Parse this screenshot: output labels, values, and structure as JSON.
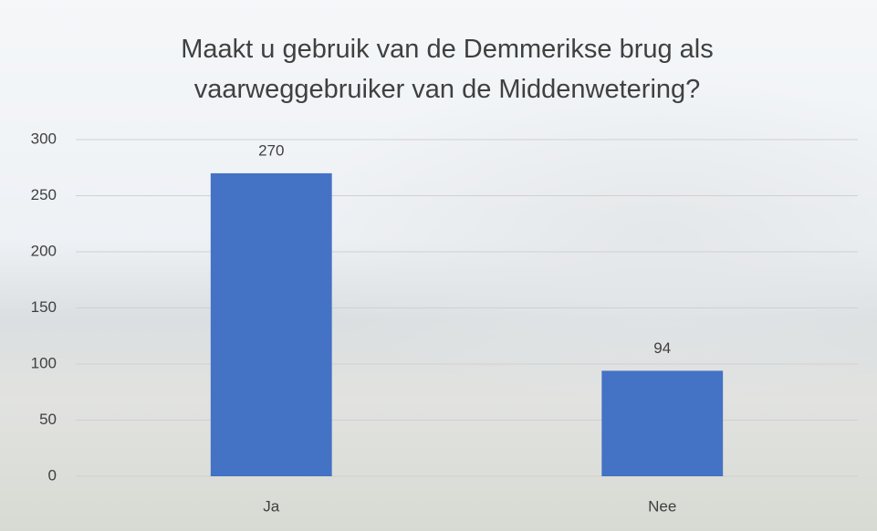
{
  "chart_data": {
    "type": "bar",
    "title": "Maakt u gebruik van de Demmerikse brug als vaarweggebruiker van de Middenwetering?",
    "categories": [
      "Ja",
      "Nee"
    ],
    "values": [
      270,
      94
    ],
    "color": "#4472c4",
    "ylim": [
      0,
      300
    ],
    "yticks": [
      0,
      50,
      100,
      150,
      200,
      250,
      300
    ],
    "grid": true
  }
}
